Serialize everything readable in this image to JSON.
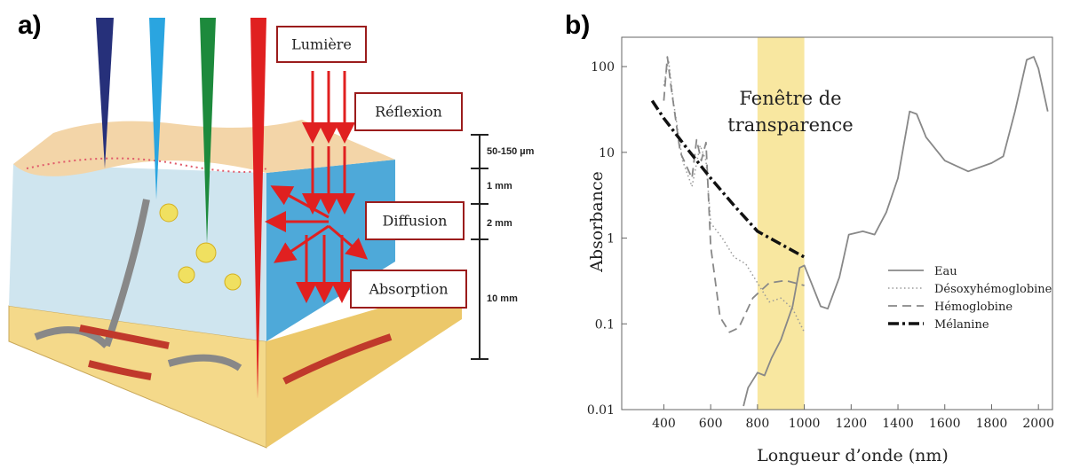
{
  "panel_a": {
    "label": "a)",
    "annotations": [
      "Lumière",
      "Réflexion",
      "Diffusion",
      "Absorption"
    ],
    "depth_labels": [
      "50-150 µm",
      "1 mm",
      "2 mm",
      "10 mm"
    ]
  },
  "chart_data": {
    "type": "line",
    "label": "b)",
    "ylabel": "Absorbance",
    "xlabel": "Longueur d’onde (nm)",
    "annotation_lines": [
      "Fenêtre de",
      "transparence"
    ],
    "highlight": [
      800,
      1000
    ],
    "highlight_color": "#f8e7a0",
    "xlim": [
      220,
      2060
    ],
    "xticks": [
      400,
      600,
      800,
      1000,
      1200,
      1400,
      1600,
      1800,
      2000
    ],
    "ylim": [
      0.01,
      220
    ],
    "yticks": [
      0.01,
      0.1,
      1,
      10,
      100
    ],
    "yscale": "log",
    "legend": "right",
    "series": [
      {
        "name": "Eau",
        "color": "#888888",
        "dash": "solid",
        "x": [
          740,
          760,
          800,
          830,
          860,
          900,
          950,
          980,
          1000,
          1030,
          1070,
          1100,
          1150,
          1190,
          1250,
          1300,
          1350,
          1400,
          1450,
          1480,
          1520,
          1600,
          1700,
          1800,
          1850,
          1900,
          1950,
          1980,
          2000,
          2040
        ],
        "values": [
          0.011,
          0.018,
          0.027,
          0.025,
          0.04,
          0.065,
          0.16,
          0.45,
          0.48,
          0.3,
          0.16,
          0.15,
          0.35,
          1.1,
          1.2,
          1.1,
          2,
          5,
          30,
          28,
          15,
          8,
          6,
          7.5,
          9,
          30,
          120,
          130,
          95,
          30
        ]
      },
      {
        "name": "Désoxyhémoglobine",
        "color": "#999999",
        "dash": "dotted",
        "x": [
          400,
          420,
          440,
          480,
          520,
          555,
          580,
          600,
          650,
          700,
          750,
          800,
          850,
          900,
          950,
          1000
        ],
        "values": [
          60,
          120,
          40,
          8,
          4,
          12,
          8,
          1.5,
          1,
          0.6,
          0.5,
          0.3,
          0.18,
          0.2,
          0.15,
          0.08
        ]
      },
      {
        "name": "Hémoglobine",
        "color": "#888888",
        "dash": "dashed",
        "x": [
          400,
          415,
          430,
          470,
          520,
          540,
          560,
          580,
          600,
          640,
          680,
          720,
          780,
          850,
          920,
          1000
        ],
        "values": [
          40,
          130,
          60,
          10,
          5,
          14,
          8,
          13,
          0.8,
          0.12,
          0.08,
          0.09,
          0.2,
          0.3,
          0.32,
          0.28
        ]
      },
      {
        "name": "Mélanine",
        "color": "#111111",
        "dash": "dashdot",
        "x": [
          350,
          400,
          500,
          600,
          700,
          800,
          900,
          1000
        ],
        "values": [
          40,
          25,
          11,
          5,
          2.4,
          1.2,
          0.85,
          0.6
        ]
      }
    ]
  }
}
